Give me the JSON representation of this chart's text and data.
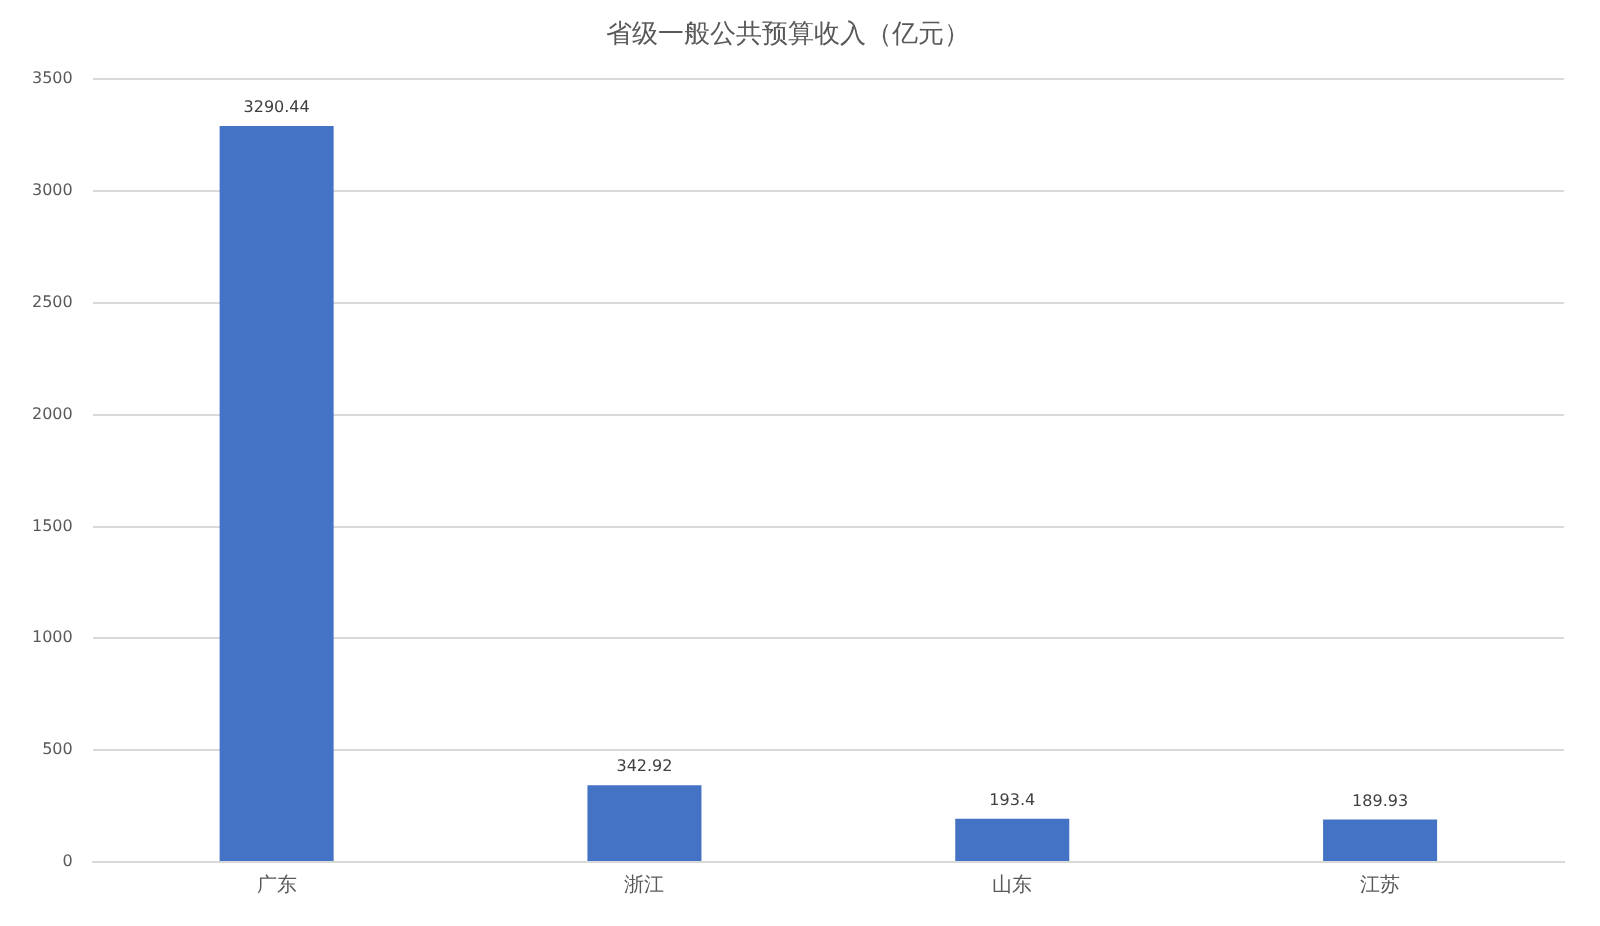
{
  "chart_data": {
    "type": "bar",
    "title": "省级一般公共预算收入（亿元）",
    "categories": [
      "广东",
      "浙江",
      "山东",
      "江苏"
    ],
    "values": [
      3290.44,
      342.92,
      193.4,
      189.93
    ],
    "color": "#4472c4",
    "ylim": [
      0,
      3500
    ],
    "yticks": [
      0,
      500,
      1000,
      1500,
      2000,
      2500,
      3000,
      3500
    ],
    "grid": "y",
    "data_labels": true
  }
}
